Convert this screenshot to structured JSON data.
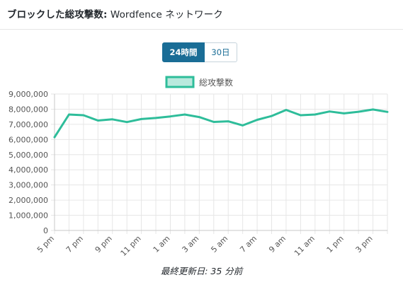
{
  "header": {
    "title_bold": "ブロックした総攻撃数:",
    "title_rest": "Wordfence ネットワーク"
  },
  "toggle": {
    "active_label": "24時間",
    "inactive_label": "30日"
  },
  "footer": {
    "text": "最終更新日: 35 分前"
  },
  "colors": {
    "line": "#2ebd9a",
    "legend_fill": "#b9e9dd",
    "button": "#1a6d96",
    "grid": "#e6e6e6"
  },
  "chart_data": {
    "type": "line",
    "legend": {
      "label": "総攻撃数",
      "position": "top-center"
    },
    "grid": true,
    "ylim": [
      0,
      9000000
    ],
    "y_ticks": [
      "9,000,000",
      "8,000,000",
      "7,000,000",
      "6,000,000",
      "5,000,000",
      "4,000,000",
      "3,000,000",
      "2,000,000",
      "1,000,000",
      "0"
    ],
    "x_ticks": [
      "5 pm",
      "7 pm",
      "9 pm",
      "11 pm",
      "1 am",
      "3 am",
      "5 am",
      "7 am",
      "9 am",
      "11 am",
      "1 pm",
      "3 pm"
    ],
    "series": [
      {
        "name": "総攻撃数",
        "x": [
          "5 pm",
          "6 pm",
          "7 pm",
          "8 pm",
          "9 pm",
          "10 pm",
          "11 pm",
          "12 am",
          "1 am",
          "2 am",
          "3 am",
          "4 am",
          "5 am",
          "6 am",
          "7 am",
          "8 am",
          "9 am",
          "10 am",
          "11 am",
          "12 pm",
          "1 pm",
          "2 pm",
          "3 pm",
          "4 pm"
        ],
        "values": [
          6150000,
          7650000,
          7600000,
          7250000,
          7330000,
          7150000,
          7350000,
          7420000,
          7520000,
          7650000,
          7480000,
          7160000,
          7200000,
          6930000,
          7300000,
          7550000,
          7950000,
          7600000,
          7650000,
          7850000,
          7720000,
          7830000,
          7980000,
          7820000
        ]
      }
    ]
  }
}
